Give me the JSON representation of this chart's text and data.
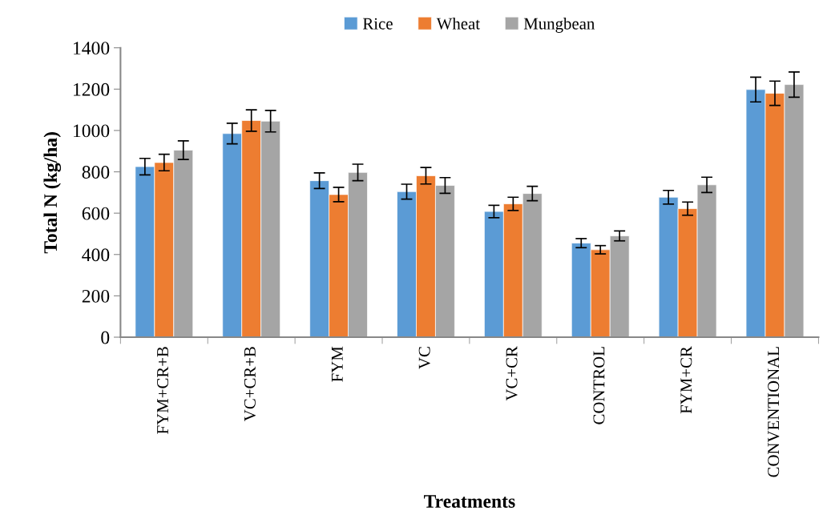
{
  "chart_data": {
    "type": "bar",
    "xlabel": "Treatments",
    "ylabel": "Total N (kg/ha)",
    "categories": [
      "FYM+CR+B",
      "VC+CR+B",
      "FYM",
      "VC",
      "VC+CR",
      "CONTROL",
      "FYM+CR",
      "CONVENTIONAL"
    ],
    "series": [
      {
        "name": "Rice",
        "color": "#5b9bd5",
        "values": [
          825,
          985,
          757,
          704,
          608,
          455,
          677,
          1198
        ],
        "errors": [
          40,
          50,
          38,
          36,
          30,
          22,
          33,
          60
        ]
      },
      {
        "name": "Wheat",
        "color": "#ed7d31",
        "values": [
          845,
          1048,
          690,
          781,
          645,
          423,
          622,
          1180
        ],
        "errors": [
          40,
          52,
          35,
          40,
          32,
          20,
          32,
          59
        ]
      },
      {
        "name": "Mungbean",
        "color": "#a5a5a5",
        "values": [
          905,
          1045,
          797,
          734,
          695,
          490,
          737,
          1222
        ],
        "errors": [
          45,
          52,
          40,
          38,
          35,
          24,
          37,
          61
        ]
      }
    ],
    "ylim": [
      0,
      1400
    ],
    "yticks": [
      0,
      200,
      400,
      600,
      800,
      1000,
      1200,
      1400
    ],
    "grid": false,
    "legend": "top"
  }
}
